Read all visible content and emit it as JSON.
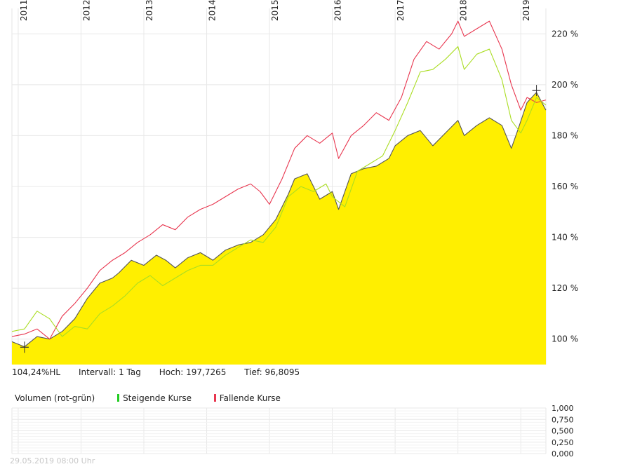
{
  "chart_data": {
    "type": "area",
    "x_ticks": [
      "2011",
      "2012",
      "2013",
      "2014",
      "2015",
      "2016",
      "2017",
      "2018",
      "2019"
    ],
    "y_ticks": [
      "100 %",
      "120 %",
      "140 %",
      "160 %",
      "180 %",
      "200 %",
      "220 %"
    ],
    "ylim": [
      90,
      230
    ],
    "xlim": [
      2010.9,
      2019.4
    ],
    "grid": true,
    "series": [
      {
        "color": "#ffef00",
        "style": "filled-area",
        "points": [
          [
            2010.9,
            99
          ],
          [
            2011.1,
            97
          ],
          [
            2011.3,
            101
          ],
          [
            2011.5,
            100
          ],
          [
            2011.7,
            103
          ],
          [
            2011.9,
            108
          ],
          [
            2012.1,
            116
          ],
          [
            2012.3,
            122
          ],
          [
            2012.5,
            124
          ],
          [
            2012.6,
            126
          ],
          [
            2012.8,
            131
          ],
          [
            2013.0,
            129
          ],
          [
            2013.2,
            133
          ],
          [
            2013.35,
            131
          ],
          [
            2013.5,
            128
          ],
          [
            2013.7,
            132
          ],
          [
            2013.9,
            134
          ],
          [
            2014.1,
            131
          ],
          [
            2014.3,
            135
          ],
          [
            2014.5,
            137
          ],
          [
            2014.7,
            138
          ],
          [
            2014.9,
            141
          ],
          [
            2015.1,
            147
          ],
          [
            2015.3,
            157
          ],
          [
            2015.4,
            163
          ],
          [
            2015.6,
            165
          ],
          [
            2015.8,
            155
          ],
          [
            2016.0,
            158
          ],
          [
            2016.1,
            151
          ],
          [
            2016.3,
            165
          ],
          [
            2016.5,
            167
          ],
          [
            2016.7,
            168
          ],
          [
            2016.9,
            171
          ],
          [
            2017.0,
            176
          ],
          [
            2017.2,
            180
          ],
          [
            2017.4,
            182
          ],
          [
            2017.6,
            176
          ],
          [
            2017.8,
            181
          ],
          [
            2018.0,
            186
          ],
          [
            2018.1,
            180
          ],
          [
            2018.3,
            184
          ],
          [
            2018.5,
            187
          ],
          [
            2018.7,
            184
          ],
          [
            2018.85,
            175
          ],
          [
            2018.95,
            182
          ],
          [
            2019.1,
            193
          ],
          [
            2019.25,
            197
          ],
          [
            2019.4,
            190
          ]
        ]
      },
      {
        "color": "#555555",
        "style": "line",
        "points": [
          [
            2010.9,
            99
          ],
          [
            2011.1,
            97
          ],
          [
            2011.3,
            101
          ],
          [
            2011.5,
            100
          ],
          [
            2011.7,
            103
          ],
          [
            2011.9,
            108
          ],
          [
            2012.1,
            116
          ],
          [
            2012.3,
            122
          ],
          [
            2012.5,
            124
          ],
          [
            2012.6,
            126
          ],
          [
            2012.8,
            131
          ],
          [
            2013.0,
            129
          ],
          [
            2013.2,
            133
          ],
          [
            2013.35,
            131
          ],
          [
            2013.5,
            128
          ],
          [
            2013.7,
            132
          ],
          [
            2013.9,
            134
          ],
          [
            2014.1,
            131
          ],
          [
            2014.3,
            135
          ],
          [
            2014.5,
            137
          ],
          [
            2014.7,
            138
          ],
          [
            2014.9,
            141
          ],
          [
            2015.1,
            147
          ],
          [
            2015.3,
            157
          ],
          [
            2015.4,
            163
          ],
          [
            2015.6,
            165
          ],
          [
            2015.8,
            155
          ],
          [
            2016.0,
            158
          ],
          [
            2016.1,
            151
          ],
          [
            2016.3,
            165
          ],
          [
            2016.5,
            167
          ],
          [
            2016.7,
            168
          ],
          [
            2016.9,
            171
          ],
          [
            2017.0,
            176
          ],
          [
            2017.2,
            180
          ],
          [
            2017.4,
            182
          ],
          [
            2017.6,
            176
          ],
          [
            2017.8,
            181
          ],
          [
            2018.0,
            186
          ],
          [
            2018.1,
            180
          ],
          [
            2018.3,
            184
          ],
          [
            2018.5,
            187
          ],
          [
            2018.7,
            184
          ],
          [
            2018.85,
            175
          ],
          [
            2018.95,
            182
          ],
          [
            2019.1,
            193
          ],
          [
            2019.25,
            197
          ],
          [
            2019.4,
            190
          ]
        ]
      },
      {
        "color": "#e8364f",
        "style": "line",
        "points": [
          [
            2010.9,
            101
          ],
          [
            2011.1,
            102
          ],
          [
            2011.3,
            104
          ],
          [
            2011.5,
            100
          ],
          [
            2011.7,
            109
          ],
          [
            2011.9,
            114
          ],
          [
            2012.1,
            120
          ],
          [
            2012.3,
            127
          ],
          [
            2012.5,
            131
          ],
          [
            2012.7,
            134
          ],
          [
            2012.9,
            138
          ],
          [
            2013.1,
            141
          ],
          [
            2013.3,
            145
          ],
          [
            2013.5,
            143
          ],
          [
            2013.7,
            148
          ],
          [
            2013.9,
            151
          ],
          [
            2014.1,
            153
          ],
          [
            2014.3,
            156
          ],
          [
            2014.5,
            159
          ],
          [
            2014.7,
            161
          ],
          [
            2014.85,
            158
          ],
          [
            2015.0,
            153
          ],
          [
            2015.2,
            163
          ],
          [
            2015.4,
            175
          ],
          [
            2015.6,
            180
          ],
          [
            2015.8,
            177
          ],
          [
            2016.0,
            181
          ],
          [
            2016.1,
            171
          ],
          [
            2016.3,
            180
          ],
          [
            2016.5,
            184
          ],
          [
            2016.7,
            189
          ],
          [
            2016.9,
            186
          ],
          [
            2017.1,
            195
          ],
          [
            2017.3,
            210
          ],
          [
            2017.5,
            217
          ],
          [
            2017.7,
            214
          ],
          [
            2017.9,
            220
          ],
          [
            2018.0,
            225
          ],
          [
            2018.1,
            219
          ],
          [
            2018.3,
            222
          ],
          [
            2018.5,
            225
          ],
          [
            2018.7,
            214
          ],
          [
            2018.85,
            200
          ],
          [
            2019.0,
            190
          ],
          [
            2019.1,
            195
          ],
          [
            2019.25,
            193
          ],
          [
            2019.4,
            194
          ]
        ]
      },
      {
        "color": "#aadd22",
        "style": "line",
        "points": [
          [
            2010.9,
            103
          ],
          [
            2011.1,
            104
          ],
          [
            2011.3,
            111
          ],
          [
            2011.5,
            108
          ],
          [
            2011.7,
            101
          ],
          [
            2011.9,
            105
          ],
          [
            2012.1,
            104
          ],
          [
            2012.3,
            110
          ],
          [
            2012.5,
            113
          ],
          [
            2012.7,
            117
          ],
          [
            2012.9,
            122
          ],
          [
            2013.1,
            125
          ],
          [
            2013.3,
            121
          ],
          [
            2013.5,
            124
          ],
          [
            2013.7,
            127
          ],
          [
            2013.9,
            129
          ],
          [
            2014.1,
            129
          ],
          [
            2014.3,
            133
          ],
          [
            2014.5,
            136
          ],
          [
            2014.7,
            139
          ],
          [
            2014.9,
            138
          ],
          [
            2015.1,
            144
          ],
          [
            2015.3,
            156
          ],
          [
            2015.5,
            160
          ],
          [
            2015.7,
            158
          ],
          [
            2015.9,
            161
          ],
          [
            2016.0,
            156
          ],
          [
            2016.2,
            152
          ],
          [
            2016.4,
            166
          ],
          [
            2016.6,
            169
          ],
          [
            2016.8,
            172
          ],
          [
            2017.0,
            182
          ],
          [
            2017.2,
            193
          ],
          [
            2017.4,
            205
          ],
          [
            2017.6,
            206
          ],
          [
            2017.8,
            210
          ],
          [
            2018.0,
            215
          ],
          [
            2018.1,
            206
          ],
          [
            2018.3,
            212
          ],
          [
            2018.5,
            214
          ],
          [
            2018.7,
            202
          ],
          [
            2018.85,
            186
          ],
          [
            2019.0,
            181
          ],
          [
            2019.1,
            186
          ],
          [
            2019.25,
            195
          ],
          [
            2019.4,
            192
          ]
        ]
      }
    ],
    "hl_markers": {
      "low": [
        2011.1,
        96.8095
      ],
      "high": [
        2019.25,
        197.7265
      ]
    },
    "volume": {
      "y_ticks": [
        "1,000",
        "0,750",
        "0,500",
        "0,250",
        "0,000"
      ],
      "values": []
    }
  },
  "info": {
    "hl_label": "104,24%HL",
    "interval": "Intervall: 1 Tag",
    "hoch": "Hoch: 197,7265",
    "tief": "Tief: 96,8095"
  },
  "volume_legend": {
    "title": "Volumen (rot-grün)",
    "rising": "Steigende Kurse",
    "falling": "Fallende Kurse",
    "rising_color": "#22cc22",
    "falling_color": "#e8364f"
  },
  "timestamp": "29.05.2019 08:00 Uhr"
}
